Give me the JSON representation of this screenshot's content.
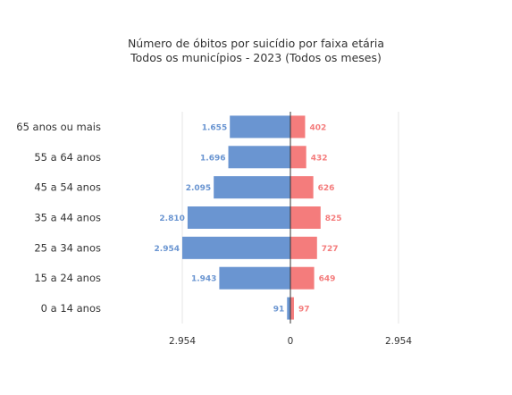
{
  "chart_data": {
    "type": "bar",
    "orientation": "horizontal-butterfly",
    "title": "Número de óbitos por suicídio por faixa etária",
    "subtitle": "Todos os municípios - 2023 (Todos os meses)",
    "categories": [
      "65 anos ou mais",
      "55 a 64 anos",
      "45 a 54 anos",
      "35 a 44 anos",
      "25 a 34 anos",
      "15 a 24 anos",
      "0 a 14 anos"
    ],
    "series": [
      {
        "side": "left",
        "color": "#6a95d1",
        "values": [
          1655,
          1696,
          2095,
          2810,
          2954,
          1943,
          91
        ],
        "labels": [
          "1.655",
          "1.696",
          "2.095",
          "2.810",
          "2.954",
          "1.943",
          "91"
        ]
      },
      {
        "side": "right",
        "color": "#f47c7c",
        "values": [
          402,
          432,
          626,
          825,
          727,
          649,
          97
        ],
        "labels": [
          "402",
          "432",
          "626",
          "825",
          "727",
          "649",
          "97"
        ]
      }
    ],
    "xlim": [
      -2954,
      2954
    ],
    "ticks": [
      {
        "value": -2954,
        "label": "2.954"
      },
      {
        "value": 0,
        "label": "0"
      },
      {
        "value": 2954,
        "label": "2.954"
      }
    ],
    "grid": true,
    "legend": "none"
  }
}
